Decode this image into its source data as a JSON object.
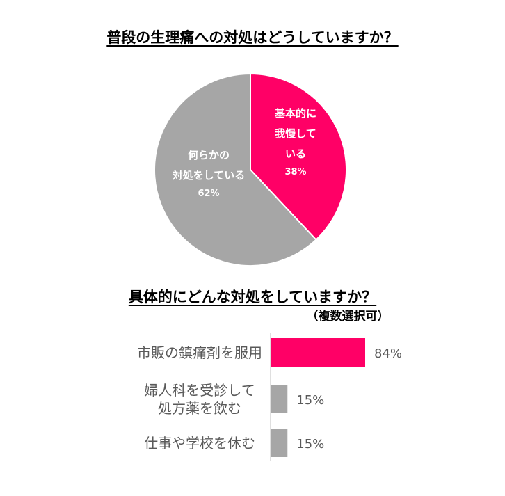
{
  "chart_data": [
    {
      "type": "pie",
      "title": "普段の生理痛への対処はどうしていますか？",
      "slices": [
        {
          "label_lines": [
            "基本的に",
            "我慢して",
            "いる"
          ],
          "value": 38,
          "value_label": "38%",
          "color": "#FF0066"
        },
        {
          "label_lines": [
            "何らかの",
            "対処をしている"
          ],
          "value": 62,
          "value_label": "62%",
          "color": "#A6A6A6"
        }
      ]
    },
    {
      "type": "bar",
      "orientation": "horizontal",
      "title": "具体的にどんな対処をしていますか？",
      "subtitle": "（複数選択可）",
      "categories": [
        {
          "lines": [
            "市販の鎮痛剤を服用"
          ]
        },
        {
          "lines": [
            "婦人科を受診して",
            "処方薬を飲む"
          ]
        },
        {
          "lines": [
            "仕事や学校を休む"
          ]
        }
      ],
      "values": [
        84,
        15,
        15
      ],
      "value_labels": [
        "84%",
        "15%",
        "15%"
      ],
      "colors": [
        "#FF0066",
        "#A6A6A6",
        "#A6A6A6"
      ]
    }
  ]
}
